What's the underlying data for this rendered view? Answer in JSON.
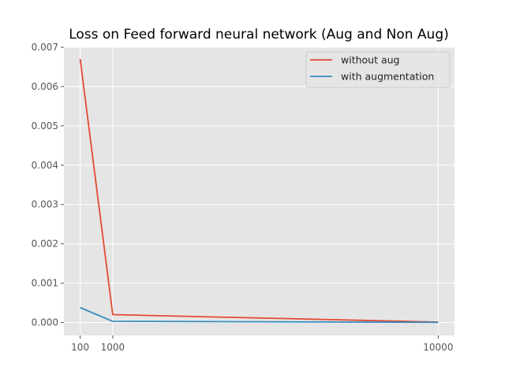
{
  "chart_data": {
    "type": "line",
    "title": "Loss on Feed forward neural network (Aug and Non Aug)",
    "xlabel": "",
    "ylabel": "",
    "x": [
      100,
      1000,
      10000
    ],
    "x_ticks": [
      100,
      1000,
      10000
    ],
    "y_ticks": [
      "0.000",
      "0.001",
      "0.002",
      "0.003",
      "0.004",
      "0.005",
      "0.006",
      "0.007"
    ],
    "xlim": [
      -350,
      10450
    ],
    "ylim": [
      -0.00033,
      0.007
    ],
    "grid": true,
    "legend_position": "top-right",
    "series": [
      {
        "name": "without aug",
        "color": "#E24A33",
        "values": [
          0.0067,
          0.0002,
          1e-05
        ]
      },
      {
        "name": "with augmentation",
        "color": "#348ABD",
        "values": [
          0.00038,
          3e-05,
          5e-06
        ]
      }
    ]
  }
}
